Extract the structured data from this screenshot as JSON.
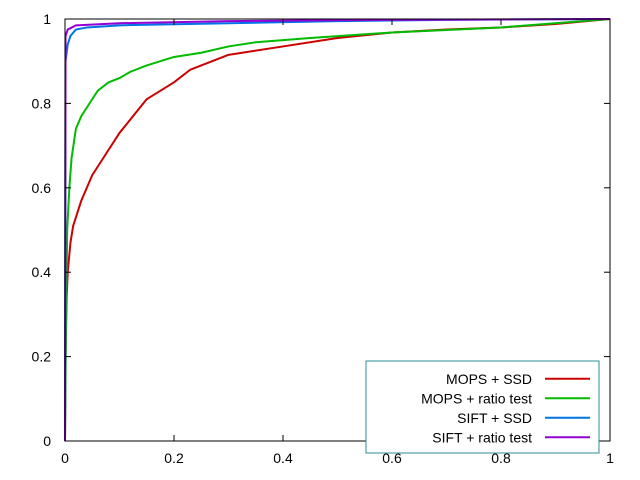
{
  "chart_data": {
    "type": "line",
    "title": "",
    "xlabel": "",
    "ylabel": "",
    "xlim": [
      0,
      1
    ],
    "ylim": [
      0,
      1
    ],
    "x_ticks": [
      0,
      0.2,
      0.4,
      0.6,
      0.8,
      1
    ],
    "y_ticks": [
      0,
      0.2,
      0.4,
      0.6,
      0.8,
      1
    ],
    "x_tick_labels": [
      "0",
      "0.2",
      "0.4",
      "0.6",
      "0.8",
      "1"
    ],
    "y_tick_labels": [
      "0",
      "0.2",
      "0.4",
      "0.6",
      "0.8",
      "1"
    ],
    "grid": false,
    "legend_position": "bottom-right",
    "legend_border_color": "#2e8b99",
    "series": [
      {
        "name": "MOPS + SSD",
        "color": "#cc0000",
        "points": [
          [
            0,
            0
          ],
          [
            0.001,
            0.2
          ],
          [
            0.003,
            0.34
          ],
          [
            0.005,
            0.4
          ],
          [
            0.01,
            0.47
          ],
          [
            0.015,
            0.51
          ],
          [
            0.03,
            0.57
          ],
          [
            0.05,
            0.63
          ],
          [
            0.07,
            0.67
          ],
          [
            0.1,
            0.73
          ],
          [
            0.15,
            0.81
          ],
          [
            0.2,
            0.85
          ],
          [
            0.23,
            0.88
          ],
          [
            0.3,
            0.915
          ],
          [
            0.4,
            0.935
          ],
          [
            0.5,
            0.955
          ],
          [
            0.6,
            0.968
          ],
          [
            0.7,
            0.975
          ],
          [
            0.8,
            0.98
          ],
          [
            0.9,
            0.988
          ],
          [
            1,
            1
          ]
        ]
      },
      {
        "name": "MOPS + ratio test",
        "color": "#00bb00",
        "points": [
          [
            0,
            0
          ],
          [
            0.002,
            0.3
          ],
          [
            0.004,
            0.5
          ],
          [
            0.008,
            0.6
          ],
          [
            0.012,
            0.67
          ],
          [
            0.02,
            0.74
          ],
          [
            0.03,
            0.77
          ],
          [
            0.04,
            0.79
          ],
          [
            0.06,
            0.83
          ],
          [
            0.08,
            0.85
          ],
          [
            0.1,
            0.86
          ],
          [
            0.12,
            0.875
          ],
          [
            0.15,
            0.89
          ],
          [
            0.2,
            0.91
          ],
          [
            0.25,
            0.92
          ],
          [
            0.3,
            0.935
          ],
          [
            0.35,
            0.945
          ],
          [
            0.45,
            0.955
          ],
          [
            0.6,
            0.968
          ],
          [
            0.8,
            0.98
          ],
          [
            1,
            1
          ]
        ]
      },
      {
        "name": "SIFT + SSD",
        "color": "#0073e6",
        "points": [
          [
            0,
            0
          ],
          [
            0.001,
            0.9
          ],
          [
            0.005,
            0.94
          ],
          [
            0.01,
            0.96
          ],
          [
            0.02,
            0.975
          ],
          [
            0.04,
            0.98
          ],
          [
            0.1,
            0.985
          ],
          [
            0.3,
            0.99
          ],
          [
            0.5,
            0.995
          ],
          [
            0.7,
            0.998
          ],
          [
            1,
            1
          ]
        ]
      },
      {
        "name": "SIFT + ratio test",
        "color": "#9400d3",
        "points": [
          [
            0,
            0
          ],
          [
            0.001,
            0.96
          ],
          [
            0.005,
            0.975
          ],
          [
            0.02,
            0.985
          ],
          [
            0.1,
            0.99
          ],
          [
            0.3,
            0.995
          ],
          [
            0.6,
            0.998
          ],
          [
            1,
            1
          ]
        ]
      }
    ]
  }
}
